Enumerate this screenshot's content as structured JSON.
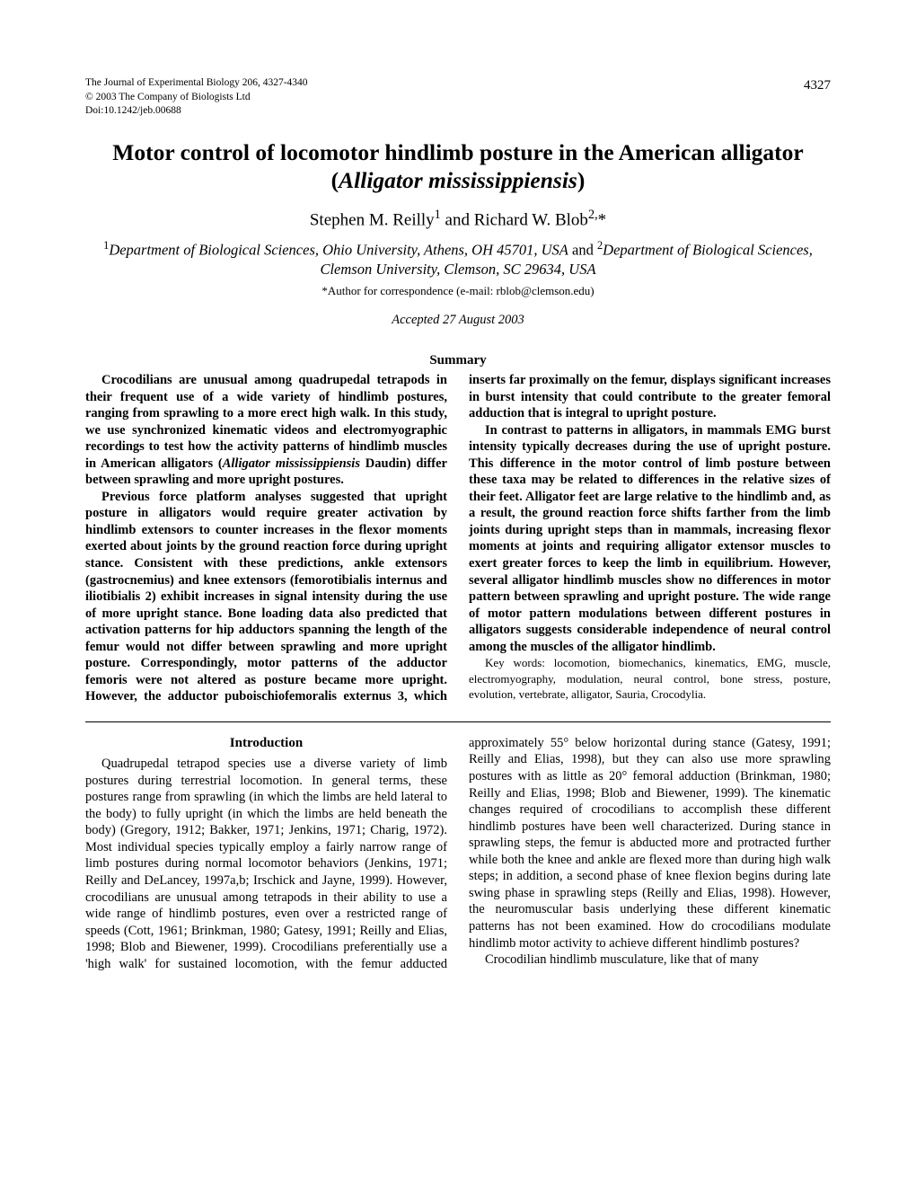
{
  "meta": {
    "journal_line": "The Journal of Experimental Biology 206, 4327-4340",
    "copyright": "© 2003 The Company of Biologists Ltd",
    "doi": "Doi:10.1242/jeb.00688",
    "page_number": "4327"
  },
  "title": {
    "line1": "Motor control of locomotor hindlimb posture in the American alligator",
    "line2_open": "(",
    "line2_species": "Alligator mississippiensis",
    "line2_close": ")"
  },
  "authors": {
    "a1_name": "Stephen M. Reilly",
    "a1_sup": "1",
    "and": " and ",
    "a2_name": "Richard W. Blob",
    "a2_sup": "2,",
    "a2_ast": "*"
  },
  "affiliations": {
    "sup1": "1",
    "aff1": "Department of Biological Sciences, Ohio University, Athens, OH 45701, USA",
    "and": " and ",
    "sup2": "2",
    "aff2": "Department of Biological Sciences, Clemson University, Clemson, SC 29634, USA"
  },
  "correspondence": "*Author for correspondence (e-mail: rblob@clemson.edu)",
  "accepted": "Accepted 27 August 2003",
  "summary_heading": "Summary",
  "summary": {
    "p1a": "Crocodilians are unusual among quadrupedal tetrapods in their frequent use of a wide variety of hindlimb postures, ranging from sprawling to a more erect high walk. In this study, we use synchronized kinematic videos and electromyographic recordings to test how the activity patterns of hindlimb muscles in American alligators (",
    "p1_species": "Alligator mississippiensis",
    "p1b": " Daudin) differ between sprawling and more upright postures.",
    "p2": "Previous force platform analyses suggested that upright posture in alligators would require greater activation by hindlimb extensors to counter increases in the flexor moments exerted about joints by the ground reaction force during upright stance. Consistent with these predictions, ankle extensors (gastrocnemius) and knee extensors (femorotibialis internus and iliotibialis 2) exhibit increases in signal intensity during the use of more upright stance. Bone loading data also predicted that activation patterns for hip adductors spanning the length of the femur would not differ between sprawling and more upright posture. Correspondingly, motor patterns of the adductor femoris were not altered as posture became more upright. However, the adductor puboischiofemoralis externus 3, which inserts far proximally on the femur, displays significant increases in burst intensity that could contribute to the greater femoral adduction that is integral to upright posture.",
    "p3": "In contrast to patterns in alligators, in mammals EMG burst intensity typically decreases during the use of upright posture. This difference in the motor control of limb posture between these taxa may be related to differences in the relative sizes of their feet. Alligator feet are large relative to the hindlimb and, as a result, the ground reaction force shifts farther from the limb joints during upright steps than in mammals, increasing flexor moments at joints and requiring alligator extensor muscles to exert greater forces to keep the limb in equilibrium. However, several alligator hindlimb muscles show no differences in motor pattern between sprawling and upright posture. The wide range of motor pattern modulations between different postures in alligators suggests considerable independence of neural control among the muscles of the alligator hindlimb."
  },
  "keywords": "Key words: locomotion, biomechanics, kinematics, EMG, muscle, electromyography, modulation, neural control, bone stress, posture, evolution, vertebrate, alligator, Sauria, Crocodylia.",
  "intro_heading": "Introduction",
  "body": {
    "p1": "Quadrupedal tetrapod species use a diverse variety of limb postures during terrestrial locomotion. In general terms, these postures range from sprawling (in which the limbs are held lateral to the body) to fully upright (in which the limbs are held beneath the body) (Gregory, 1912; Bakker, 1971; Jenkins, 1971; Charig, 1972). Most individual species typically employ a fairly narrow range of limb postures during normal locomotor behaviors (Jenkins, 1971; Reilly and DeLancey, 1997a,b; Irschick and Jayne, 1999). However, crocodilians are unusual among tetrapods in their ability to use a wide range of hindlimb postures, even over a restricted range of speeds (Cott, 1961; Brinkman, 1980; Gatesy, 1991; Reilly and Elias, 1998; Blob and Biewener, 1999). Crocodilians preferentially use a 'high walk' for sustained locomotion, with the femur adducted approximately 55° below horizontal during stance (Gatesy, 1991; Reilly and Elias, 1998), but they can also use more sprawling postures with as little as 20° femoral adduction (Brinkman, 1980; Reilly and Elias, 1998; Blob and Biewener, 1999). The kinematic changes required of crocodilians to accomplish these different hindlimb postures have been well characterized. During stance in sprawling steps, the femur is abducted more and protracted further while both the knee and ankle are flexed more than during high walk steps; in addition, a second phase of knee flexion begins during late swing phase in sprawling steps (Reilly and Elias, 1998). However, the neuromuscular basis underlying these different kinematic patterns has not been examined. How do crocodilians modulate hindlimb motor activity to achieve different hindlimb postures?",
    "p2": "Crocodilian hindlimb musculature, like that of many"
  }
}
